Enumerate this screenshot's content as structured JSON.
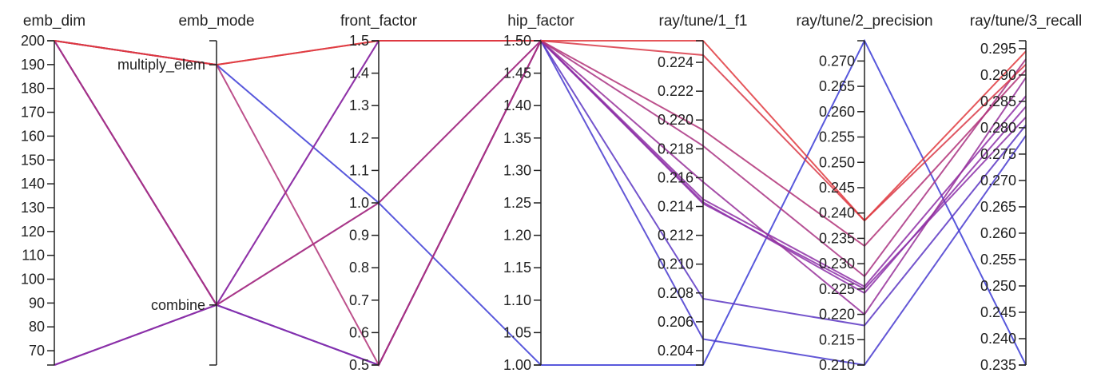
{
  "chart_data": {
    "type": "parallel_coordinates",
    "color_metric": "ray/tune/1_f1",
    "color_scale": {
      "low": "#3b3bd6",
      "mid": "#8c2fa8",
      "high": "#e0393e"
    },
    "axes": [
      {
        "key": "emb_dim",
        "label": "emb_dim",
        "kind": "numeric",
        "range": [
          64,
          200
        ],
        "ticks": [
          70,
          80,
          90,
          100,
          110,
          120,
          130,
          140,
          150,
          160,
          170,
          180,
          190,
          200
        ],
        "decimals": 0
      },
      {
        "key": "emb_mode",
        "label": "emb_mode",
        "kind": "categorical",
        "range": [
          -0.25,
          1.1
        ],
        "categories": [
          "combine",
          "multiply_elem"
        ],
        "category_positions": [
          0,
          1
        ]
      },
      {
        "key": "front_factor",
        "label": "front_factor",
        "kind": "numeric",
        "range": [
          0.5,
          1.5
        ],
        "ticks": [
          0.5,
          0.6,
          0.7,
          0.8,
          0.9,
          1.0,
          1.1,
          1.2,
          1.3,
          1.4,
          1.5
        ],
        "decimals": 1
      },
      {
        "key": "hip_factor",
        "label": "hip_factor",
        "kind": "numeric",
        "range": [
          1.0,
          1.5
        ],
        "ticks": [
          1.0,
          1.05,
          1.1,
          1.15,
          1.2,
          1.25,
          1.3,
          1.35,
          1.4,
          1.45,
          1.5
        ],
        "decimals": 2
      },
      {
        "key": "f1",
        "label": "ray/tune/1_f1",
        "kind": "numeric",
        "range": [
          0.203,
          0.2255
        ],
        "ticks": [
          0.204,
          0.206,
          0.208,
          0.21,
          0.212,
          0.214,
          0.216,
          0.218,
          0.22,
          0.222,
          0.224
        ],
        "decimals": 3
      },
      {
        "key": "precision",
        "label": "ray/tune/2_precision",
        "kind": "numeric",
        "range": [
          0.21,
          0.274
        ],
        "ticks": [
          0.21,
          0.215,
          0.22,
          0.225,
          0.23,
          0.235,
          0.24,
          0.245,
          0.25,
          0.255,
          0.26,
          0.265,
          0.27
        ],
        "decimals": 3
      },
      {
        "key": "recall",
        "label": "ray/tune/3_recall",
        "kind": "numeric",
        "range": [
          0.235,
          0.2965
        ],
        "ticks": [
          0.235,
          0.24,
          0.245,
          0.25,
          0.255,
          0.26,
          0.265,
          0.27,
          0.275,
          0.28,
          0.285,
          0.29,
          0.295
        ],
        "decimals": 3
      }
    ],
    "trials": [
      {
        "emb_dim": 200,
        "emb_mode": "multiply_elem",
        "front_factor": 1.5,
        "hip_factor": 1.5,
        "f1": 0.2255,
        "precision": 0.2385,
        "recall": 0.2945
      },
      {
        "emb_dim": 200,
        "emb_mode": "multiply_elem",
        "front_factor": 1.5,
        "hip_factor": 1.5,
        "f1": 0.2245,
        "precision": 0.2385,
        "recall": 0.292
      },
      {
        "emb_dim": 200,
        "emb_mode": "multiply_elem",
        "front_factor": 0.5,
        "hip_factor": 1.5,
        "f1": 0.2193,
        "precision": 0.2335,
        "recall": 0.291
      },
      {
        "emb_dim": 200,
        "emb_mode": "combine",
        "front_factor": 1.0,
        "hip_factor": 1.5,
        "f1": 0.2182,
        "precision": 0.2275,
        "recall": 0.293
      },
      {
        "emb_dim": 200,
        "emb_mode": "combine",
        "front_factor": 1.0,
        "hip_factor": 1.5,
        "f1": 0.2157,
        "precision": 0.22,
        "recall": 0.2895
      },
      {
        "emb_dim": 64,
        "emb_mode": "combine",
        "front_factor": 1.5,
        "hip_factor": 1.5,
        "f1": 0.2145,
        "precision": 0.2255,
        "recall": 0.286
      },
      {
        "emb_dim": 64,
        "emb_mode": "combine",
        "front_factor": 0.5,
        "hip_factor": 1.5,
        "f1": 0.2143,
        "precision": 0.2242,
        "recall": 0.284
      },
      {
        "emb_dim": 200,
        "emb_mode": "combine",
        "front_factor": 1.5,
        "hip_factor": 1.5,
        "f1": 0.2142,
        "precision": 0.225,
        "recall": 0.282
      },
      {
        "emb_dim": 200,
        "emb_mode": "combine",
        "front_factor": 0.5,
        "hip_factor": 1.5,
        "f1": 0.2076,
        "precision": 0.2178,
        "recall": 0.2805
      },
      {
        "emb_dim": 64,
        "emb_mode": "combine",
        "front_factor": 0.5,
        "hip_factor": 1.5,
        "f1": 0.2048,
        "precision": 0.21,
        "recall": 0.2785
      },
      {
        "emb_dim": 200,
        "emb_mode": "multiply_elem",
        "front_factor": 1.0,
        "hip_factor": 1.0,
        "f1": 0.203,
        "precision": 0.274,
        "recall": 0.235
      }
    ]
  }
}
